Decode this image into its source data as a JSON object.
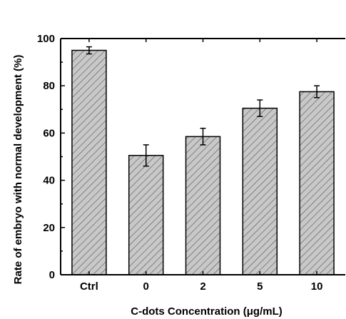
{
  "chart_data": {
    "type": "bar",
    "title": "",
    "xlabel": "C-dots Concentration (μg/mL)",
    "ylabel": "Rate of embryo with normal development (%)",
    "categories": [
      "Ctrl",
      "0",
      "2",
      "5",
      "10"
    ],
    "values": [
      95,
      50.5,
      58.5,
      70.5,
      77.5
    ],
    "errors": [
      1.5,
      4.5,
      3.5,
      3.5,
      2.5
    ],
    "ylim": [
      0,
      100
    ],
    "yticks": [
      "0",
      "20",
      "40",
      "60",
      "80",
      "100"
    ],
    "grid": false,
    "legend": "none",
    "bar_fill": "#c8c8c8",
    "hatch_color": "#555555"
  }
}
